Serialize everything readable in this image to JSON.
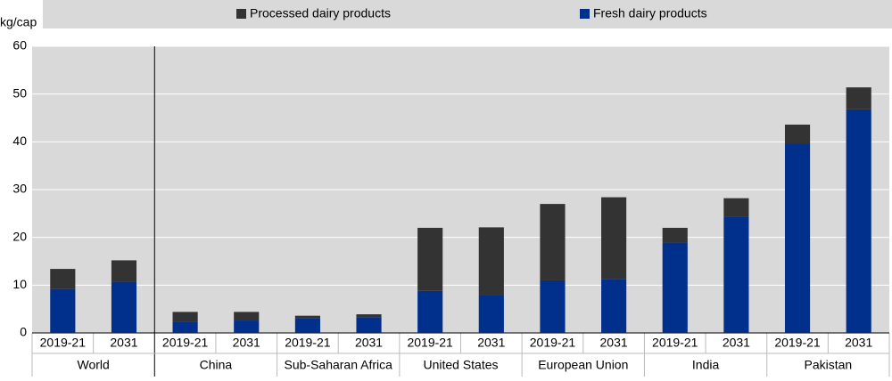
{
  "chart_data": {
    "type": "stacked-bar",
    "y_label": "kg/cap",
    "categories": [
      "2019-21",
      "2031",
      "2019-21",
      "2031",
      "2019-21",
      "2031",
      "2019-21",
      "2031",
      "2019-21",
      "2031",
      "2019-21",
      "2031",
      "2019-21",
      "2031"
    ],
    "groups": [
      "World",
      "China",
      "Sub-Saharan Africa",
      "United States",
      "European Union",
      "India",
      "Pakistan"
    ],
    "series": [
      {
        "name": "Processed dairy products",
        "color": "#333333",
        "values": [
          4.2,
          4.5,
          2.0,
          1.8,
          0.6,
          0.6,
          13.2,
          14.1,
          16.0,
          17.2,
          3.1,
          3.9,
          4.0,
          4.6
        ]
      },
      {
        "name": "Fresh dairy products",
        "color": "#002f8c",
        "values": [
          9.2,
          10.7,
          2.4,
          2.6,
          3.0,
          3.3,
          8.8,
          8.0,
          11.0,
          11.2,
          18.9,
          24.3,
          39.6,
          46.8
        ]
      }
    ],
    "ylim": [
      0,
      60
    ],
    "yticks": [
      0,
      10,
      20,
      30,
      40,
      50,
      60
    ],
    "grid": true
  }
}
